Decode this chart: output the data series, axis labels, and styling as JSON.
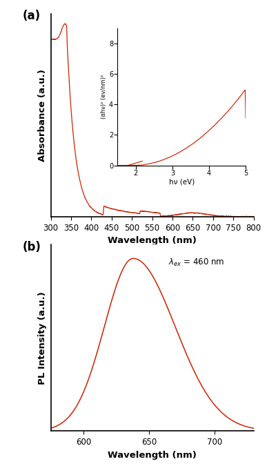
{
  "line_color": "#CC2200",
  "bg_color": "#ffffff",
  "panel_a": {
    "xlabel": "Wavelength (nm)",
    "ylabel": "Absorbance (a.u.)",
    "xlim": [
      300,
      800
    ],
    "xticks": [
      300,
      350,
      400,
      450,
      500,
      550,
      600,
      650,
      700,
      750,
      800
    ],
    "label": "(a)"
  },
  "panel_b": {
    "xlabel": "Wavelength (nm)",
    "ylabel": "PL Intensity (a.u.)",
    "xlim": [
      575,
      730
    ],
    "xticks": [
      600,
      650,
      700
    ],
    "label": "(b)"
  },
  "inset": {
    "xlabel": "hν (eV)",
    "ylabel": "(αhν)² (ev/nm)²",
    "xlim": [
      1.5,
      5.0
    ],
    "ylim": [
      0,
      9
    ],
    "xticks": [
      2,
      3,
      4,
      5
    ],
    "yticks": [
      0,
      2,
      4,
      6,
      8
    ]
  }
}
